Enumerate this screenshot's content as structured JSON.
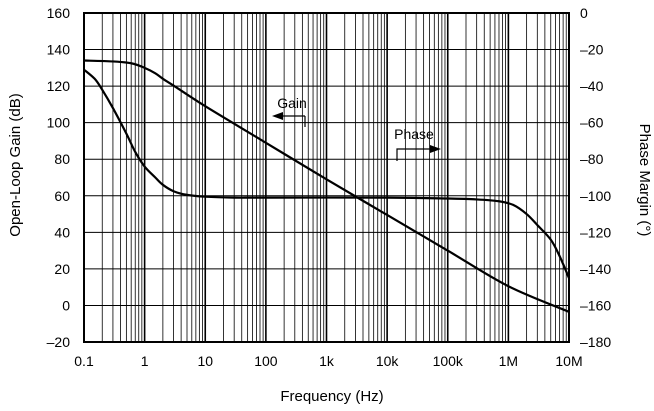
{
  "chart_data": {
    "type": "line",
    "xlabel": "Frequency (Hz)",
    "ylabel_left": "Open-Loop Gain (dB)",
    "ylabel_right": "Phase Margin (°)",
    "x_scale": "log",
    "xlim": [
      0.1,
      10000000
    ],
    "ylim_left": [
      -20,
      160
    ],
    "ylim_right": [
      -180,
      0
    ],
    "grid": true,
    "x_ticks": [
      {
        "value": 0.1,
        "label": "0.1"
      },
      {
        "value": 1,
        "label": "1"
      },
      {
        "value": 10,
        "label": "10"
      },
      {
        "value": 100,
        "label": "100"
      },
      {
        "value": 1000,
        "label": "1k"
      },
      {
        "value": 10000,
        "label": "10k"
      },
      {
        "value": 100000,
        "label": "100k"
      },
      {
        "value": 1000000,
        "label": "1M"
      },
      {
        "value": 10000000,
        "label": "10M"
      }
    ],
    "y_left_ticks": [
      {
        "value": 160,
        "label": "160"
      },
      {
        "value": 140,
        "label": "140"
      },
      {
        "value": 120,
        "label": "120"
      },
      {
        "value": 100,
        "label": "100"
      },
      {
        "value": 80,
        "label": "80"
      },
      {
        "value": 60,
        "label": "60"
      },
      {
        "value": 40,
        "label": "40"
      },
      {
        "value": 20,
        "label": "20"
      },
      {
        "value": 0,
        "label": "0"
      },
      {
        "value": -20,
        "label": "–20"
      }
    ],
    "y_right_ticks": [
      {
        "value": 0,
        "label": "0"
      },
      {
        "value": -20,
        "label": "–20"
      },
      {
        "value": -40,
        "label": "–40"
      },
      {
        "value": -60,
        "label": "–60"
      },
      {
        "value": -80,
        "label": "–80"
      },
      {
        "value": -100,
        "label": "–100"
      },
      {
        "value": -120,
        "label": "–120"
      },
      {
        "value": -140,
        "label": "–140"
      },
      {
        "value": -160,
        "label": "–160"
      },
      {
        "value": -180,
        "label": "–180"
      }
    ],
    "series": [
      {
        "name": "Gain",
        "axis": "left",
        "points": [
          [
            0.1,
            134
          ],
          [
            0.3,
            133.5
          ],
          [
            0.6,
            132.5
          ],
          [
            1,
            130
          ],
          [
            1.5,
            127
          ],
          [
            2,
            124
          ],
          [
            3,
            120.3
          ],
          [
            10,
            109
          ],
          [
            100,
            89
          ],
          [
            1000,
            69
          ],
          [
            10000,
            49.5
          ],
          [
            100000,
            30
          ],
          [
            1000000,
            10.5
          ],
          [
            10000000,
            -3.5
          ]
        ]
      },
      {
        "name": "Phase",
        "axis": "right",
        "points": [
          [
            0.1,
            -31
          ],
          [
            0.15,
            -36
          ],
          [
            0.2,
            -42
          ],
          [
            0.3,
            -52
          ],
          [
            0.5,
            -66
          ],
          [
            0.7,
            -76
          ],
          [
            1,
            -84
          ],
          [
            1.5,
            -90
          ],
          [
            2,
            -94
          ],
          [
            3,
            -97.5
          ],
          [
            5,
            -99.5
          ],
          [
            10,
            -100.5
          ],
          [
            30,
            -101
          ],
          [
            100,
            -101
          ],
          [
            10000,
            -101
          ],
          [
            100000,
            -101.5
          ],
          [
            300000,
            -102
          ],
          [
            700000,
            -103
          ],
          [
            1200000,
            -105
          ],
          [
            2000000,
            -110
          ],
          [
            3000000,
            -116
          ],
          [
            5000000,
            -124
          ],
          [
            7000000,
            -133
          ],
          [
            10000000,
            -145
          ]
        ]
      }
    ],
    "annotations": [
      {
        "text": "Gain",
        "arrow": "left"
      },
      {
        "text": "Phase",
        "arrow": "right"
      }
    ]
  }
}
